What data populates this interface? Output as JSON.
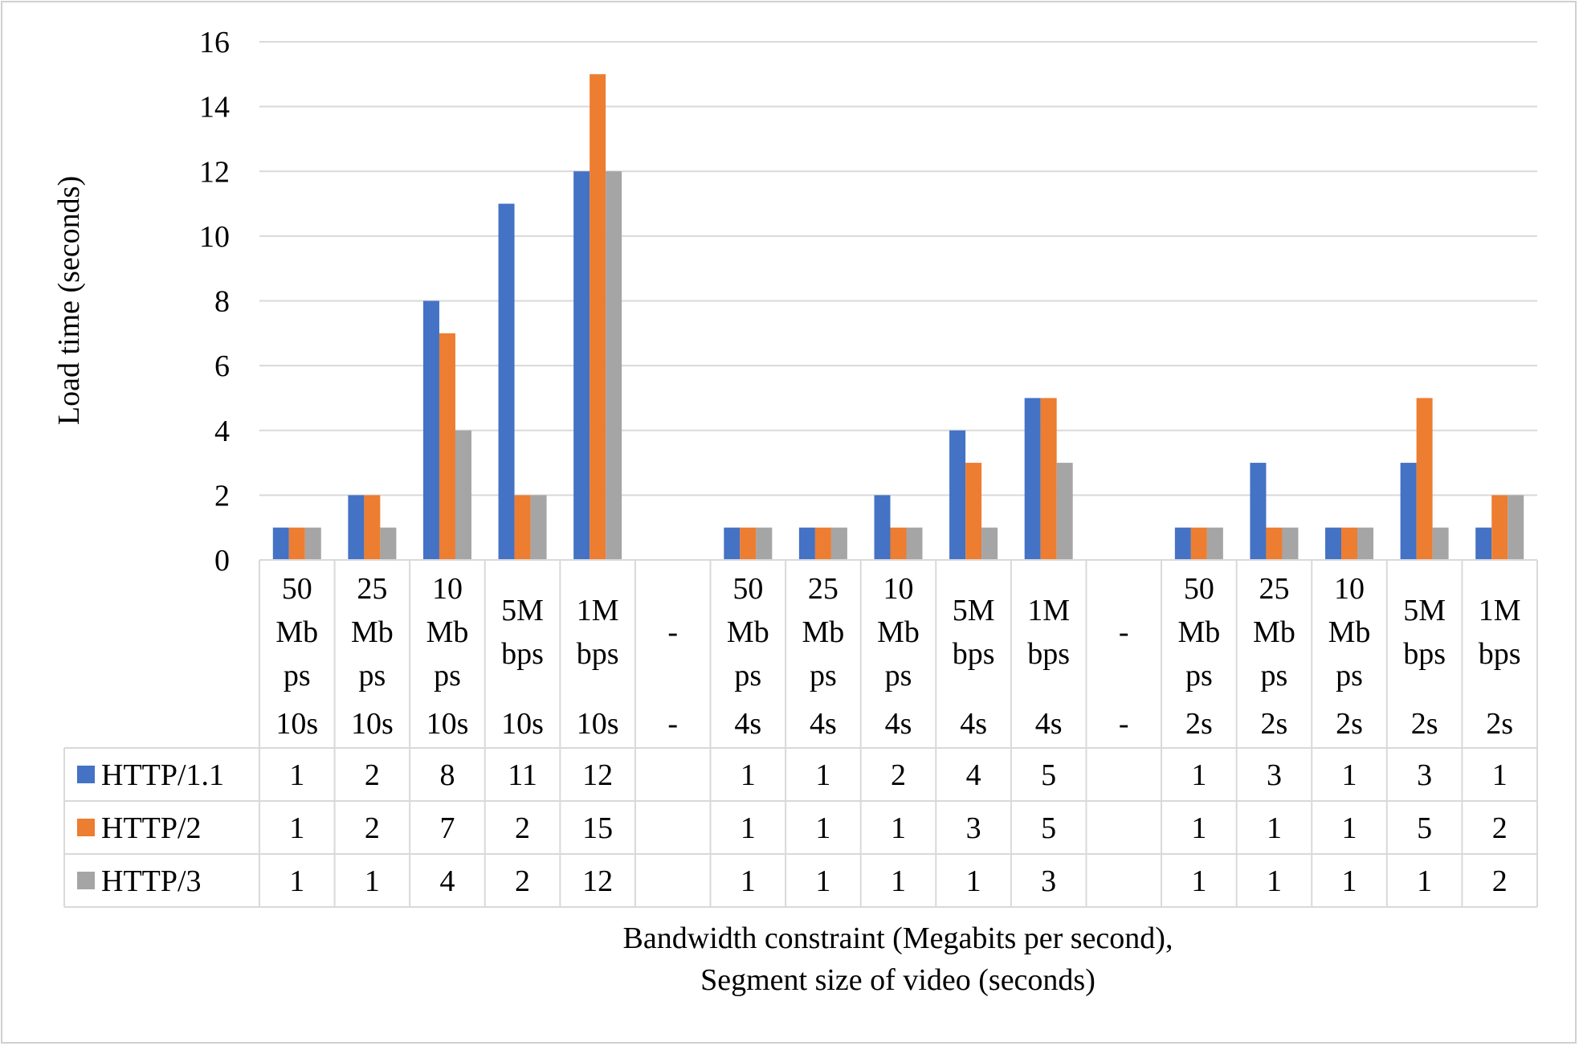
{
  "chart_data": {
    "type": "bar",
    "title": "",
    "xlabel": "Bandwidth constraint (Megabits per second),\nSegment size of video (seconds)",
    "ylabel": "Load time (seconds)",
    "ylim": [
      0,
      16
    ],
    "yticks": [
      0,
      2,
      4,
      6,
      8,
      10,
      12,
      14,
      16
    ],
    "grid": true,
    "legend": "data-table-left",
    "categories": [
      {
        "bandwidth": [
          "50",
          "Mb",
          "ps"
        ],
        "segment": "10s"
      },
      {
        "bandwidth": [
          "25",
          "Mb",
          "ps"
        ],
        "segment": "10s"
      },
      {
        "bandwidth": [
          "10",
          "Mb",
          "ps"
        ],
        "segment": "10s"
      },
      {
        "bandwidth": [
          "5M",
          "bps"
        ],
        "segment": "10s"
      },
      {
        "bandwidth": [
          "1M",
          "bps"
        ],
        "segment": "10s"
      },
      {
        "bandwidth": [
          "-"
        ],
        "segment": "-"
      },
      {
        "bandwidth": [
          "50",
          "Mb",
          "ps"
        ],
        "segment": "4s"
      },
      {
        "bandwidth": [
          "25",
          "Mb",
          "ps"
        ],
        "segment": "4s"
      },
      {
        "bandwidth": [
          "10",
          "Mb",
          "ps"
        ],
        "segment": "4s"
      },
      {
        "bandwidth": [
          "5M",
          "bps"
        ],
        "segment": "4s"
      },
      {
        "bandwidth": [
          "1M",
          "bps"
        ],
        "segment": "4s"
      },
      {
        "bandwidth": [
          "-"
        ],
        "segment": "-"
      },
      {
        "bandwidth": [
          "50",
          "Mb",
          "ps"
        ],
        "segment": "2s"
      },
      {
        "bandwidth": [
          "25",
          "Mb",
          "ps"
        ],
        "segment": "2s"
      },
      {
        "bandwidth": [
          "10",
          "Mb",
          "ps"
        ],
        "segment": "2s"
      },
      {
        "bandwidth": [
          "5M",
          "bps"
        ],
        "segment": "2s"
      },
      {
        "bandwidth": [
          "1M",
          "bps"
        ],
        "segment": "2s"
      }
    ],
    "series": [
      {
        "name": "HTTP/1.1",
        "color": "#4472c4",
        "values": [
          1,
          2,
          8,
          11,
          12,
          null,
          1,
          1,
          2,
          4,
          5,
          null,
          1,
          3,
          1,
          3,
          1
        ]
      },
      {
        "name": "HTTP/2",
        "color": "#ed7d31",
        "values": [
          1,
          2,
          7,
          2,
          15,
          null,
          1,
          1,
          1,
          3,
          5,
          null,
          1,
          1,
          1,
          5,
          2
        ]
      },
      {
        "name": "HTTP/3",
        "color": "#a5a5a5",
        "values": [
          1,
          1,
          4,
          2,
          12,
          null,
          1,
          1,
          1,
          1,
          3,
          null,
          1,
          1,
          1,
          1,
          2
        ]
      }
    ]
  }
}
